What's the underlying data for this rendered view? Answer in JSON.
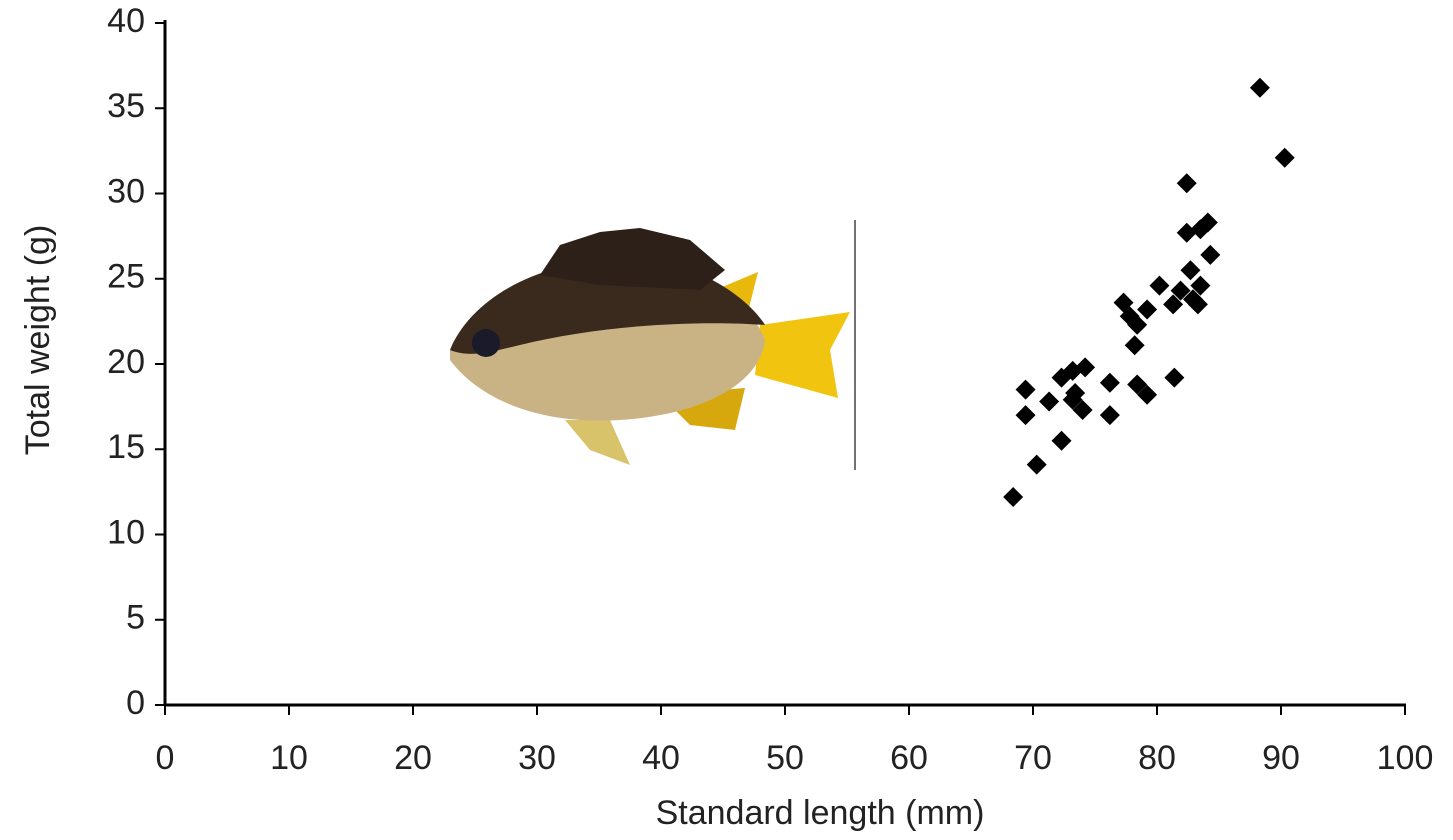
{
  "chart_data": {
    "type": "scatter",
    "x_label": "Standard length (mm)",
    "y_label": "Total weight (g)",
    "x": [
      68.4,
      70.3,
      69.4,
      69.4,
      71.3,
      72.3,
      72.3,
      73.2,
      73.2,
      74.2,
      74.0,
      73.4,
      76.2,
      76.2,
      77.3,
      77.8,
      78.2,
      78.4,
      78.4,
      79.2,
      79.2,
      80.2,
      81.4,
      81.3,
      81.9,
      82.4,
      82.4,
      82.7,
      82.9,
      83.5,
      83.5,
      84.1,
      84.3,
      83.3,
      88.3,
      90.3
    ],
    "values": [
      12.2,
      14.1,
      17.0,
      18.5,
      17.8,
      15.5,
      19.2,
      19.6,
      17.9,
      19.8,
      17.3,
      18.3,
      18.9,
      17.0,
      23.6,
      22.8,
      21.1,
      22.3,
      18.8,
      18.2,
      23.2,
      24.6,
      19.2,
      23.5,
      24.3,
      30.6,
      27.7,
      25.5,
      23.8,
      24.6,
      27.9,
      28.3,
      26.4,
      23.5,
      36.2,
      32.1
    ],
    "color": "#000000",
    "xlim": [
      0,
      100
    ],
    "xticks": [
      0,
      10,
      20,
      30,
      40,
      50,
      60,
      70,
      80,
      90,
      100
    ],
    "ylim": [
      0,
      40
    ],
    "yticks": [
      0,
      5,
      10,
      15,
      20,
      25,
      30,
      35,
      40
    ]
  }
}
